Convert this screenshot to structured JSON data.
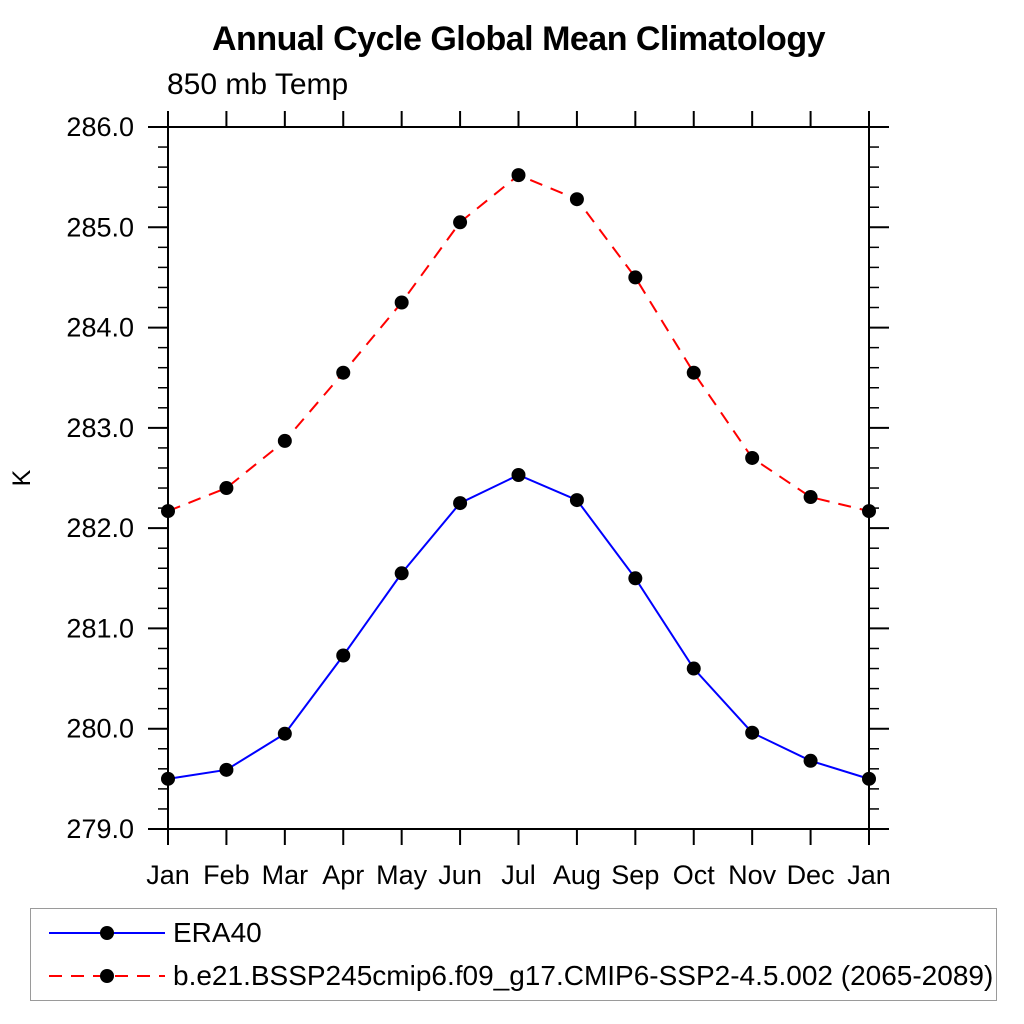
{
  "page": {
    "background_color": "#ffffff",
    "text_color": "#000000",
    "axis_color": "#000000"
  },
  "chart_data": {
    "type": "line",
    "title": "Annual Cycle Global Mean Climatology",
    "subtitle": "850 mb Temp",
    "ylabel": "K",
    "xlabel": "",
    "grid": false,
    "legend_position": "bottom-box",
    "categories": [
      "Jan",
      "Feb",
      "Mar",
      "Apr",
      "May",
      "Jun",
      "Jul",
      "Aug",
      "Sep",
      "Oct",
      "Nov",
      "Dec",
      "Jan"
    ],
    "ylim": [
      279.0,
      286.0
    ],
    "ytick_labels": [
      "279.0",
      "280.0",
      "281.0",
      "282.0",
      "283.0",
      "284.0",
      "285.0",
      "286.0"
    ],
    "ytick_minor_step": 0.2,
    "series": [
      {
        "name": "ERA40",
        "color": "#0000ff",
        "style": "solid",
        "marker": "filled-circle",
        "marker_color": "#000000",
        "values": [
          279.5,
          279.59,
          279.95,
          280.73,
          281.55,
          282.25,
          282.53,
          282.28,
          281.5,
          280.6,
          279.96,
          279.68,
          279.5
        ]
      },
      {
        "name": "b.e21.BSSP245cmip6.f09_g17.CMIP6-SSP2-4.5.002 (2065-2089)",
        "color": "#ff0000",
        "style": "dashed",
        "marker": "filled-circle",
        "marker_color": "#000000",
        "values": [
          282.17,
          282.4,
          282.87,
          283.55,
          284.25,
          285.05,
          285.52,
          285.28,
          284.5,
          283.55,
          282.7,
          282.31,
          282.17
        ]
      }
    ]
  }
}
